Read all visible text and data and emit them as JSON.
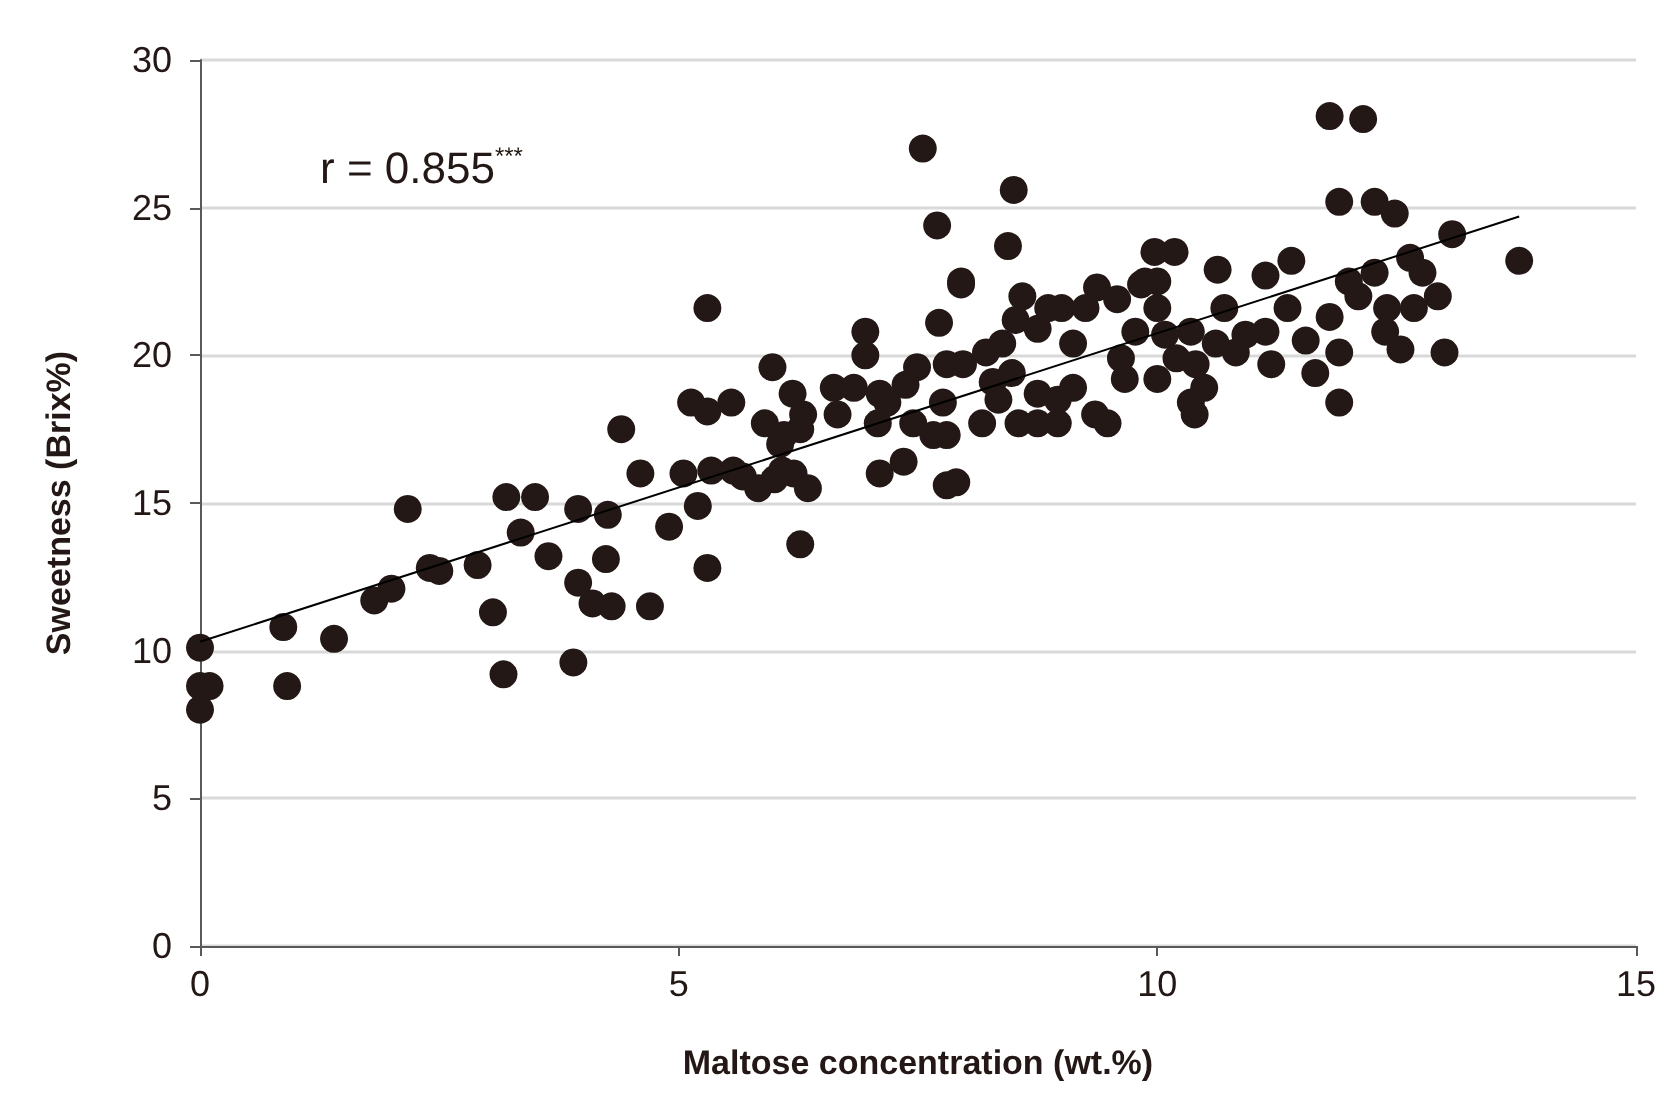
{
  "chart_data": {
    "type": "scatter",
    "xlabel": "Maltose concentration (wt.%)",
    "ylabel": "Sweetness (Brix%)",
    "annotations": [
      "r = 0.855$^{***}$"
    ],
    "xlim": [
      0,
      15
    ],
    "xticks": [
      0,
      5,
      10,
      15
    ],
    "ylim": [
      0,
      30
    ],
    "yticks": [
      0,
      5,
      10,
      15,
      20,
      25,
      30
    ],
    "grid": "y",
    "marker": "circle",
    "series": [
      {
        "color": "#231815",
        "x": [
          0,
          0,
          0.1,
          0,
          0.87,
          0.91,
          1.4,
          1.82,
          2.0,
          2.17,
          2.4,
          2.5,
          2.9,
          3.06,
          3.17,
          3.2,
          3.35,
          3.5,
          3.64,
          3.9,
          3.95,
          3.95,
          4.1,
          4.24,
          4.26,
          4.3,
          4.4,
          4.6,
          4.7,
          4.9,
          5.05,
          5.13,
          5.2,
          5.3,
          5.3,
          5.3,
          5.34,
          5.57,
          5.67,
          5.83,
          5.9,
          5.98,
          6.0,
          6.08,
          6.1,
          6.19,
          6.2,
          6.27,
          6.3,
          6.35,
          6.27,
          5.55,
          6.06,
          6.62,
          6.66,
          6.83,
          6.95,
          6.95,
          7.1,
          7.18,
          7.08,
          7.1,
          7.35,
          7.37,
          7.49,
          7.45,
          7.72,
          7.66,
          7.8,
          7.76,
          7.8,
          7.97,
          7.8,
          7.9,
          7.95,
          8.17,
          8.21,
          8.28,
          8.34,
          8.38,
          8.48,
          8.55,
          8.59,
          8.52,
          8.75,
          8.75,
          8.75,
          8.86,
          9.0,
          8.96,
          8.96,
          9.12,
          9.12,
          9.25,
          9.35,
          9.48,
          9.37,
          9.58,
          9.66,
          9.62,
          9.77,
          9.83,
          7.55,
          8.5,
          7.7,
          8.44,
          7.95,
          9.97,
          10.18,
          10.63,
          11.8,
          12.15,
          11.9,
          12.27,
          12.48,
          13.08,
          13.78,
          11.4,
          11.13,
          12.64,
          12.27,
          12.0,
          12.77,
          12.1,
          9.87,
          10.0,
          10.0,
          12.93,
          12.68,
          12.4,
          10.7,
          11.36,
          11.8,
          12.38,
          11.13,
          10.92,
          10.35,
          10.08,
          11.55,
          10.61,
          10.82,
          11.9,
          12.54,
          13.0,
          10.2,
          10.4,
          11.19,
          10.0,
          11.65,
          10.49,
          10.35,
          11.9,
          10.39
        ],
        "values": [
          10.1,
          8.8,
          8.8,
          8.0,
          10.8,
          8.8,
          10.4,
          11.7,
          12.1,
          14.8,
          12.8,
          12.7,
          12.9,
          11.3,
          9.2,
          15.2,
          14.0,
          15.2,
          13.2,
          9.6,
          14.8,
          12.3,
          11.6,
          13.1,
          14.6,
          11.5,
          17.5,
          16.0,
          11.5,
          14.2,
          16.0,
          18.4,
          14.9,
          12.8,
          21.6,
          18.1,
          16.1,
          16.1,
          15.9,
          15.5,
          17.7,
          19.6,
          15.8,
          16.1,
          17.3,
          18.7,
          16.0,
          17.5,
          18.0,
          15.5,
          13.6,
          18.4,
          17.0,
          18.9,
          18.0,
          18.9,
          20.8,
          20.0,
          18.7,
          18.4,
          17.7,
          16.0,
          16.4,
          19.0,
          19.6,
          17.7,
          21.1,
          17.3,
          17.3,
          18.4,
          19.7,
          19.7,
          15.6,
          15.7,
          22.4,
          17.7,
          20.1,
          19.1,
          18.5,
          20.4,
          19.4,
          17.7,
          22.0,
          21.2,
          17.7,
          18.7,
          20.9,
          21.6,
          21.6,
          17.7,
          18.5,
          18.9,
          20.4,
          21.6,
          18.0,
          17.7,
          22.3,
          21.9,
          19.2,
          19.9,
          20.8,
          22.4,
          27.0,
          25.6,
          24.4,
          23.7,
          22.5,
          23.5,
          23.5,
          22.9,
          28.1,
          28.0,
          25.2,
          25.2,
          24.8,
          24.1,
          23.2,
          23.2,
          22.7,
          23.3,
          22.8,
          22.5,
          22.8,
          22.0,
          22.5,
          22.5,
          21.6,
          22.0,
          21.6,
          21.6,
          21.6,
          21.6,
          21.3,
          20.8,
          20.8,
          20.7,
          20.8,
          20.7,
          20.5,
          20.4,
          20.1,
          20.1,
          20.2,
          20.1,
          19.9,
          19.7,
          19.7,
          19.2,
          19.4,
          18.9,
          18.4,
          18.4,
          18.0
        ]
      },
      {
        "type": "line",
        "color": "#000000",
        "marker": "none",
        "x": [
          0,
          13.78
        ],
        "values": [
          10.3,
          24.7
        ]
      }
    ]
  }
}
